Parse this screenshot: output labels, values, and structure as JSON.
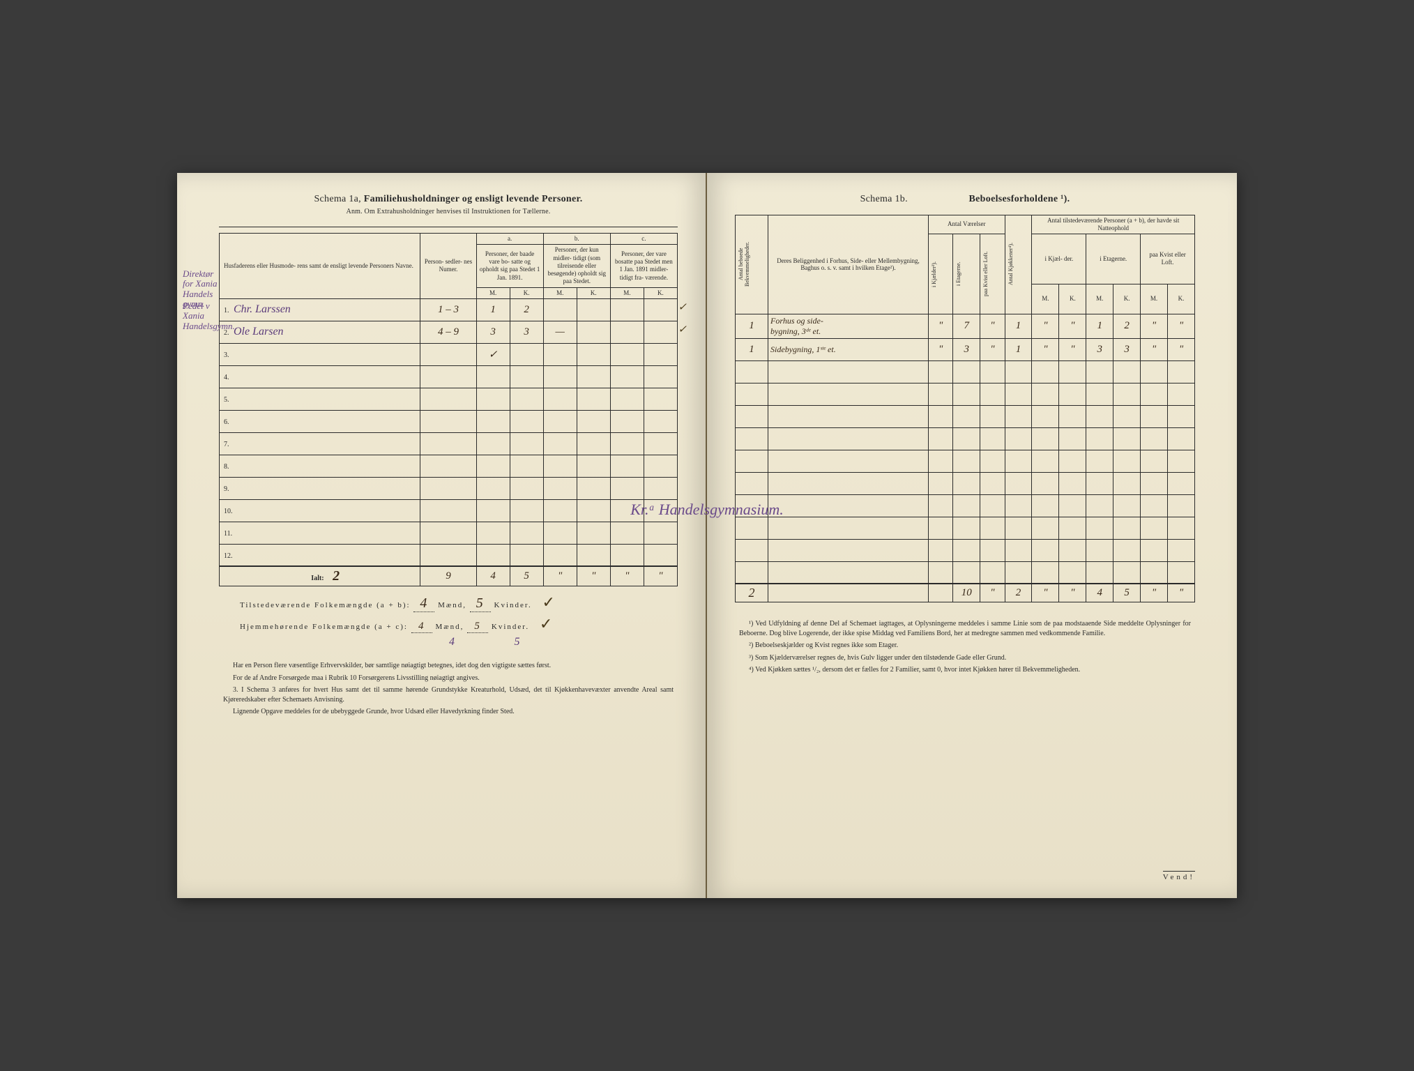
{
  "left": {
    "schema_label": "Schema 1a,",
    "title_bold": "Familiehusholdninger og ensligt levende Personer.",
    "subtitle": "Anm. Om Extrahusholdninger henvises til Instruktionen for Tællerne.",
    "headers": {
      "names": "Husfaderens eller Husmode-\nrens samt de ensligt levende\nPersoners Navne.",
      "numbers": "Person-\nsedler-\nnes\nNumer.",
      "col_a_letter": "a.",
      "col_a": "Personer, der\nbaade vare bo-\nsatte og opholdt\nsig paa Stedet\n1 Jan. 1891.",
      "col_b_letter": "b.",
      "col_b": "Personer, der\nkun midler-\ntidigt (som\ntilreisende\neller\nbesøgende)\nopholdt sig\npaa Stedet.",
      "col_c_letter": "c.",
      "col_c": "Personer, der\nvare bosatte\npaa Stedet\nmen 1 Jan.\n1891 midler-\ntidigt fra-\nværende.",
      "M": "M.",
      "K": "K."
    },
    "margin_notes": {
      "note1": "Direktør for Xania Handels gymn.",
      "note2": "Pedel v Xania Handelsgymn."
    },
    "rows": [
      {
        "n": "1.",
        "name": "Chr. Larssen",
        "num": "1 – 3",
        "aM": "1",
        "aK": "2",
        "bM": "",
        "bK": "",
        "cM": "",
        "cK": "",
        "tick": "✓"
      },
      {
        "n": "2.",
        "name": "Ole Larsen",
        "num": "4 – 9",
        "aM": "3",
        "aK": "3",
        "bM": "—",
        "bK": "",
        "cM": "",
        "cK": "",
        "tick": "✓"
      },
      {
        "n": "3.",
        "name": "",
        "num": "",
        "aM": "✓",
        "aK": "",
        "bM": "",
        "bK": "",
        "cM": "",
        "cK": "",
        "tick": ""
      },
      {
        "n": "4.",
        "name": "",
        "num": "",
        "aM": "",
        "aK": "",
        "bM": "",
        "bK": "",
        "cM": "",
        "cK": "",
        "tick": ""
      },
      {
        "n": "5.",
        "name": "",
        "num": "",
        "aM": "",
        "aK": "",
        "bM": "",
        "bK": "",
        "cM": "",
        "cK": "",
        "tick": ""
      },
      {
        "n": "6.",
        "name": "",
        "num": "",
        "aM": "",
        "aK": "",
        "bM": "",
        "bK": "",
        "cM": "",
        "cK": "",
        "tick": ""
      },
      {
        "n": "7.",
        "name": "",
        "num": "",
        "aM": "",
        "aK": "",
        "bM": "",
        "bK": "",
        "cM": "",
        "cK": "",
        "tick": ""
      },
      {
        "n": "8.",
        "name": "",
        "num": "",
        "aM": "",
        "aK": "",
        "bM": "",
        "bK": "",
        "cM": "",
        "cK": "",
        "tick": ""
      },
      {
        "n": "9.",
        "name": "",
        "num": "",
        "aM": "",
        "aK": "",
        "bM": "",
        "bK": "",
        "cM": "",
        "cK": "",
        "tick": ""
      },
      {
        "n": "10.",
        "name": "",
        "num": "",
        "aM": "",
        "aK": "",
        "bM": "",
        "bK": "",
        "cM": "",
        "cK": "",
        "tick": ""
      },
      {
        "n": "11.",
        "name": "",
        "num": "",
        "aM": "",
        "aK": "",
        "bM": "",
        "bK": "",
        "cM": "",
        "cK": "",
        "tick": ""
      },
      {
        "n": "12.",
        "name": "",
        "num": "",
        "aM": "",
        "aK": "",
        "bM": "",
        "bK": "",
        "cM": "",
        "cK": "",
        "tick": ""
      }
    ],
    "totals": {
      "label": "Ialt:",
      "count": "2",
      "num": "9",
      "aM": "4",
      "aK": "5",
      "bM": "\"",
      "bK": "\"",
      "cM": "\"",
      "cK": "\""
    },
    "summary1_label": "Tilstedeværende Folkemængde (a + b):",
    "summary1_m": "4",
    "summary1_mlabel": "Mænd,",
    "summary1_k": "5",
    "summary1_klabel": "Kvinder.",
    "summary2_label": "Hjemmehørende Folkemængde (a + c):",
    "summary2_m": "4",
    "summary2_mlabel": "Mænd,",
    "summary2_k": "5",
    "summary2_klabel": "Kvinder.",
    "under_m": "4",
    "under_k": "5",
    "footnotes": [
      "Har en Person flere væsentlige Erhvervskilder, bør samtlige nøiagtigt betegnes, idet dog den vigtigste sættes først.",
      "For de af Andre Forsørgede maa i Rubrik 10 Forsørgerens Livsstilling nøiagtigt angives.",
      "3. I Schema 3 anføres for hvert Hus samt det til samme hørende Grundstykke Kreaturhold, Udsæd, det til Kjøkkenhavevæxter anvendte Areal samt Kjøreredskaber efter Schemaets Anvisning.",
      "Lignende Opgave meddeles for de ubebyggede Grunde, hvor Udsæd eller Havedyrkning finder Sted."
    ]
  },
  "center_annotation": "Kr.ᵃ Handelsgymnasium.",
  "right": {
    "schema_label": "Schema 1b.",
    "title_bold": "Beboelsesforholdene ¹).",
    "headers": {
      "antal_bek": "Antal beboede\nBekvemmeligheder.",
      "beliggenhed": "Deres Beliggenhed\ni Forhus, Side- eller\nMellembygning,\nBaghus o. s. v.\nsamt i hvilken\nEtage²).",
      "antal_vaer": "Antal\nVærelser",
      "kjokkener": "Antal Kjøkkener⁴).",
      "persons_header": "Antal tilstedeværende Personer\n(a + b), der havde sit\nNatteophold",
      "i_kjaelder": "i Kjælder³).",
      "i_etagerne": "i Etagerne.",
      "paa_kvist": "paa Kvist eller\nLoft.",
      "i_kjael_short": "i Kjæl-\nder.",
      "i_etag_short": "i\nEtagerne.",
      "paa_kvist_short": "paa\nKvist\neller\nLoft.",
      "M": "M.",
      "K": "K."
    },
    "rows": [
      {
        "bek": "1",
        "loc": "Forhus og side-\nbygning, 3ᵈᵉ et.",
        "vk": "\"",
        "ve": "7",
        "vl": "\"",
        "kjok": "1",
        "kM": "\"",
        "kK": "\"",
        "eM": "1",
        "eK": "2",
        "lM": "\"",
        "lK": "\""
      },
      {
        "bek": "1",
        "loc": "Sidebygning, 1ˢᵗᵉ et.",
        "vk": "\"",
        "ve": "3",
        "vl": "\"",
        "kjok": "1",
        "kM": "\"",
        "kK": "\"",
        "eM": "3",
        "eK": "3",
        "lM": "\"",
        "lK": "\""
      },
      {
        "bek": "",
        "loc": "",
        "vk": "",
        "ve": "",
        "vl": "",
        "kjok": "",
        "kM": "",
        "kK": "",
        "eM": "",
        "eK": "",
        "lM": "",
        "lK": ""
      },
      {
        "bek": "",
        "loc": "",
        "vk": "",
        "ve": "",
        "vl": "",
        "kjok": "",
        "kM": "",
        "kK": "",
        "eM": "",
        "eK": "",
        "lM": "",
        "lK": ""
      },
      {
        "bek": "",
        "loc": "",
        "vk": "",
        "ve": "",
        "vl": "",
        "kjok": "",
        "kM": "",
        "kK": "",
        "eM": "",
        "eK": "",
        "lM": "",
        "lK": ""
      },
      {
        "bek": "",
        "loc": "",
        "vk": "",
        "ve": "",
        "vl": "",
        "kjok": "",
        "kM": "",
        "kK": "",
        "eM": "",
        "eK": "",
        "lM": "",
        "lK": ""
      },
      {
        "bek": "",
        "loc": "",
        "vk": "",
        "ve": "",
        "vl": "",
        "kjok": "",
        "kM": "",
        "kK": "",
        "eM": "",
        "eK": "",
        "lM": "",
        "lK": ""
      },
      {
        "bek": "",
        "loc": "",
        "vk": "",
        "ve": "",
        "vl": "",
        "kjok": "",
        "kM": "",
        "kK": "",
        "eM": "",
        "eK": "",
        "lM": "",
        "lK": ""
      },
      {
        "bek": "",
        "loc": "",
        "vk": "",
        "ve": "",
        "vl": "",
        "kjok": "",
        "kM": "",
        "kK": "",
        "eM": "",
        "eK": "",
        "lM": "",
        "lK": ""
      },
      {
        "bek": "",
        "loc": "",
        "vk": "",
        "ve": "",
        "vl": "",
        "kjok": "",
        "kM": "",
        "kK": "",
        "eM": "",
        "eK": "",
        "lM": "",
        "lK": ""
      },
      {
        "bek": "",
        "loc": "",
        "vk": "",
        "ve": "",
        "vl": "",
        "kjok": "",
        "kM": "",
        "kK": "",
        "eM": "",
        "eK": "",
        "lM": "",
        "lK": ""
      },
      {
        "bek": "",
        "loc": "",
        "vk": "",
        "ve": "",
        "vl": "",
        "kjok": "",
        "kM": "",
        "kK": "",
        "eM": "",
        "eK": "",
        "lM": "",
        "lK": ""
      }
    ],
    "totals": {
      "bek": "2",
      "loc": "",
      "vk": "",
      "ve": "10",
      "vl": "\"",
      "kjok": "2",
      "kM": "\"",
      "kK": "\"",
      "eM": "4",
      "eK": "5",
      "lM": "\"",
      "lK": "\""
    },
    "footnotes": [
      "¹) Ved Udfyldning af denne Del af Schemaet iagttages, at Oplysningerne meddeles i samme Linie som de paa modstaaende Side meddelte Oplysninger for Beboerne. Dog blive Logerende, der ikke spise Middag ved Familiens Bord, her at medregne sammen med vedkommende Familie.",
      "²) Beboelseskjælder og Kvist regnes ikke som Etager.",
      "³) Som Kjælderværelser regnes de, hvis Gulv ligger under den tilstødende Gade eller Grund.",
      "⁴) Ved Kjøkken sættes ¹/₂, dersom det er fælles for 2 Familier, samt 0, hvor intet Kjøkken hører til Bekvemmeligheden."
    ],
    "vend": "Vend!"
  },
  "colors": {
    "paper": "#ede6cf",
    "ink": "#2a2a2a",
    "purple_ink": "#5a3a7a",
    "brown_ink": "#3a2a1a"
  }
}
